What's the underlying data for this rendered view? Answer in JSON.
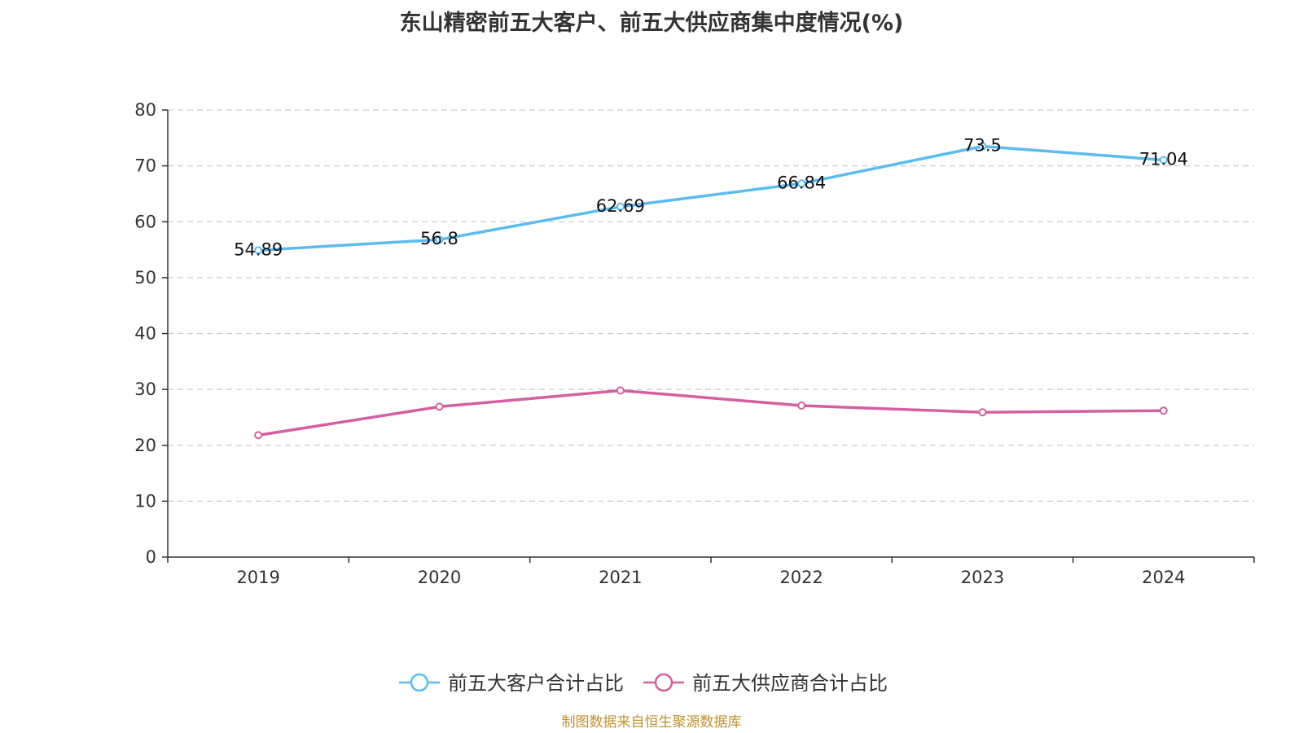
{
  "title": "东山精密前五大客户、前五大供应商集中度情况(%)",
  "source": "制图数据来自恒生聚源数据库",
  "chart_data": {
    "type": "line",
    "title": "东山精密前五大客户、前五大供应商集中度情况(%)",
    "categories": [
      "2019",
      "2020",
      "2021",
      "2022",
      "2023",
      "2024"
    ],
    "ylim": [
      0,
      80
    ],
    "yticks": [
      0,
      10,
      20,
      30,
      40,
      50,
      60,
      70,
      80
    ],
    "grid": true,
    "legend_position": "bottom",
    "series": [
      {
        "name": "前五大客户合计占比",
        "color": "#5bbcf0",
        "values": [
          54.89,
          56.8,
          62.69,
          66.84,
          73.5,
          71.04
        ],
        "show_labels": true
      },
      {
        "name": "前五大供应商合计占比",
        "color": "#d4609f",
        "values": [
          21.8,
          26.9,
          29.8,
          27.1,
          25.9,
          26.2
        ],
        "show_labels": false
      }
    ]
  }
}
